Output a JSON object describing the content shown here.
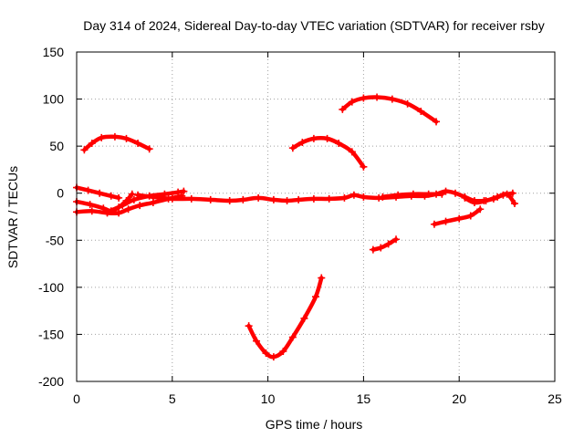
{
  "chart_data": {
    "type": "scatter",
    "title": "Day 314 of 2024, Sidereal Day-to-day VTEC variation (SDTVAR) for receiver rsby",
    "xlabel": "GPS time / hours",
    "ylabel": "SDTVAR / TECUs",
    "xlim": [
      0,
      25
    ],
    "ylim": [
      -200,
      150
    ],
    "xticks": [
      0,
      5,
      10,
      15,
      20,
      25
    ],
    "yticks": [
      -200,
      -150,
      -100,
      -50,
      0,
      50,
      100,
      150
    ],
    "grid": true,
    "marker": "+",
    "color": "#ff0000",
    "series": [
      {
        "name": "arc-1",
        "points": [
          [
            0.4,
            46
          ],
          [
            0.8,
            53
          ],
          [
            1.3,
            59
          ],
          [
            2.0,
            60
          ],
          [
            2.6,
            58
          ],
          [
            3.2,
            53
          ],
          [
            3.8,
            47
          ]
        ]
      },
      {
        "name": "arc-2",
        "points": [
          [
            11.3,
            48
          ],
          [
            11.8,
            54
          ],
          [
            12.4,
            58
          ],
          [
            13.1,
            58
          ],
          [
            13.7,
            53
          ],
          [
            14.4,
            44
          ],
          [
            15.0,
            28
          ]
        ]
      },
      {
        "name": "arc-3",
        "points": [
          [
            13.9,
            89
          ],
          [
            14.4,
            97
          ],
          [
            15.0,
            101
          ],
          [
            15.7,
            102
          ],
          [
            16.5,
            100
          ],
          [
            17.3,
            95
          ],
          [
            18.0,
            87
          ],
          [
            18.8,
            76
          ]
        ]
      },
      {
        "name": "arc-4",
        "points": [
          [
            9.0,
            -141
          ],
          [
            9.4,
            -157
          ],
          [
            9.9,
            -170
          ],
          [
            10.3,
            -174
          ],
          [
            10.8,
            -168
          ],
          [
            11.3,
            -153
          ],
          [
            11.9,
            -133
          ],
          [
            12.5,
            -110
          ],
          [
            12.8,
            -90
          ]
        ]
      },
      {
        "name": "arc-5",
        "points": [
          [
            15.5,
            -60
          ],
          [
            15.9,
            -58
          ],
          [
            16.3,
            -54
          ],
          [
            16.7,
            -49
          ]
        ]
      },
      {
        "name": "arc-6",
        "points": [
          [
            18.7,
            -33
          ],
          [
            19.3,
            -30
          ],
          [
            20.0,
            -27
          ],
          [
            20.6,
            -24
          ],
          [
            21.1,
            -17
          ]
        ]
      },
      {
        "name": "band-1",
        "points": [
          [
            0.0,
            6
          ],
          [
            0.6,
            3
          ],
          [
            1.2,
            0
          ],
          [
            1.8,
            -3
          ],
          [
            2.2,
            -5
          ]
        ]
      },
      {
        "name": "band-2",
        "points": [
          [
            0.0,
            -9
          ],
          [
            0.7,
            -12
          ],
          [
            1.4,
            -16
          ],
          [
            1.8,
            -19
          ],
          [
            2.2,
            -15
          ],
          [
            2.6,
            -8
          ],
          [
            2.9,
            -1
          ]
        ]
      },
      {
        "name": "band-3",
        "points": [
          [
            0.0,
            -20
          ],
          [
            0.8,
            -19
          ],
          [
            1.6,
            -21
          ],
          [
            2.2,
            -21
          ],
          [
            2.7,
            -17
          ],
          [
            3.3,
            -13
          ],
          [
            4.0,
            -10
          ],
          [
            4.8,
            -6
          ],
          [
            5.5,
            -3
          ]
        ]
      },
      {
        "name": "band-4",
        "points": [
          [
            1.6,
            -20
          ],
          [
            2.4,
            -13
          ],
          [
            3.0,
            -7
          ],
          [
            3.8,
            -3
          ],
          [
            4.6,
            -1
          ],
          [
            5.3,
            1
          ],
          [
            5.6,
            2
          ]
        ]
      },
      {
        "name": "band-5",
        "points": [
          [
            3.2,
            -2
          ],
          [
            4.0,
            -4
          ],
          [
            5.0,
            -6
          ],
          [
            6.0,
            -6
          ],
          [
            7.0,
            -7
          ],
          [
            8.0,
            -8
          ],
          [
            8.7,
            -7
          ],
          [
            9.5,
            -5
          ],
          [
            10.3,
            -7
          ],
          [
            11.0,
            -8
          ],
          [
            11.6,
            -7
          ],
          [
            12.4,
            -6
          ],
          [
            13.2,
            -6
          ],
          [
            14.0,
            -5
          ],
          [
            14.5,
            -2
          ],
          [
            15.0,
            -4
          ],
          [
            15.8,
            -5
          ],
          [
            16.7,
            -4
          ],
          [
            17.5,
            -3
          ],
          [
            18.2,
            -3
          ],
          [
            18.8,
            -1
          ],
          [
            19.3,
            2
          ],
          [
            19.8,
            0
          ],
          [
            20.3,
            -4
          ],
          [
            20.8,
            -8
          ],
          [
            21.3,
            -8
          ],
          [
            21.8,
            -6
          ],
          [
            22.3,
            -2
          ],
          [
            22.8,
            0
          ]
        ]
      },
      {
        "name": "band-6",
        "points": [
          [
            16.0,
            -4
          ],
          [
            16.8,
            -2
          ],
          [
            17.6,
            -1
          ],
          [
            18.4,
            -1
          ],
          [
            19.1,
            -1
          ]
        ]
      },
      {
        "name": "band-7",
        "points": [
          [
            20.3,
            -5
          ],
          [
            20.8,
            -10
          ],
          [
            21.4,
            -8
          ],
          [
            22.0,
            -4
          ],
          [
            22.5,
            -1
          ],
          [
            22.9,
            -11
          ]
        ]
      }
    ]
  }
}
